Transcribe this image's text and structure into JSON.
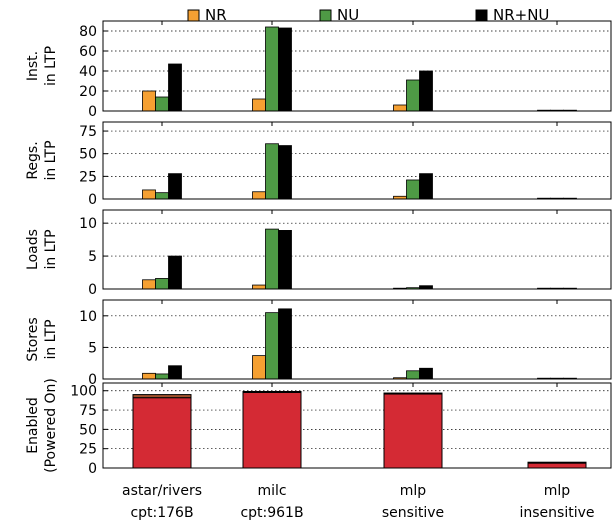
{
  "chart_data": {
    "type": "bar",
    "legend": {
      "placement": "top",
      "items": [
        {
          "name": "NR",
          "color": "#f5a032"
        },
        {
          "name": "NU",
          "color": "#4e9a45"
        },
        {
          "name": "NR+NU",
          "color": "#000000"
        }
      ]
    },
    "categories": [
      {
        "line1": "astar/rivers",
        "line2": "cpt:176B"
      },
      {
        "line1": "milc",
        "line2": "cpt:961B"
      },
      {
        "line1": "mlp",
        "line2": "sensitive"
      },
      {
        "line1": "mlp",
        "line2": "insensitive"
      }
    ],
    "panels": [
      {
        "id": "inst",
        "ylabel": [
          "Inst.",
          "in LTP"
        ],
        "ylim": [
          0,
          90
        ],
        "yticks": [
          0,
          20,
          40,
          60,
          80
        ],
        "grid": true,
        "series": [
          {
            "name": "NR",
            "values": [
              20,
              12,
              6,
              0
            ]
          },
          {
            "name": "NU",
            "values": [
              14,
              84,
              31,
              0.5
            ]
          },
          {
            "name": "NR+NU",
            "values": [
              47,
              83,
              40,
              0.8
            ]
          }
        ]
      },
      {
        "id": "regs",
        "ylabel": [
          "Regs.",
          "in LTP"
        ],
        "ylim": [
          0,
          85
        ],
        "yticks": [
          0,
          25,
          50,
          75
        ],
        "grid": true,
        "series": [
          {
            "name": "NR",
            "values": [
              10,
              8,
              3,
              0
            ]
          },
          {
            "name": "NU",
            "values": [
              7,
              61,
              21,
              0.3
            ]
          },
          {
            "name": "NR+NU",
            "values": [
              28,
              59,
              28,
              0.5
            ]
          }
        ]
      },
      {
        "id": "loads",
        "ylabel": [
          "Loads",
          "in LTP"
        ],
        "ylim": [
          0,
          12
        ],
        "yticks": [
          0,
          5,
          10
        ],
        "grid": true,
        "series": [
          {
            "name": "NR",
            "values": [
              1.4,
              0.6,
              0.1,
              0
            ]
          },
          {
            "name": "NU",
            "values": [
              1.6,
              9.1,
              0.2,
              0.05
            ]
          },
          {
            "name": "NR+NU",
            "values": [
              5.0,
              8.9,
              0.5,
              0.1
            ]
          }
        ]
      },
      {
        "id": "stores",
        "ylabel": [
          "Stores",
          "in LTP"
        ],
        "ylim": [
          0,
          12.5
        ],
        "yticks": [
          0,
          5,
          10
        ],
        "grid": true,
        "series": [
          {
            "name": "NR",
            "values": [
              0.9,
              3.7,
              0.2,
              0
            ]
          },
          {
            "name": "NU",
            "values": [
              0.8,
              10.5,
              1.3,
              0.05
            ]
          },
          {
            "name": "NR+NU",
            "values": [
              2.1,
              11.1,
              1.7,
              0.1
            ]
          }
        ]
      },
      {
        "id": "enabled",
        "type": "stacked-bar",
        "ylabel": [
          "Enabled",
          "(Powered On)"
        ],
        "ylim": [
          0,
          110
        ],
        "yticks": [
          0,
          25,
          50,
          75,
          100
        ],
        "grid": true,
        "series": [
          {
            "name": "enabled",
            "color": "#d42a34",
            "values": [
              91,
              98,
              96,
              7
            ]
          },
          {
            "name": "top segment",
            "color": "#a0522d",
            "values": [
              4,
              1,
              1,
              0.5
            ]
          }
        ]
      }
    ]
  }
}
